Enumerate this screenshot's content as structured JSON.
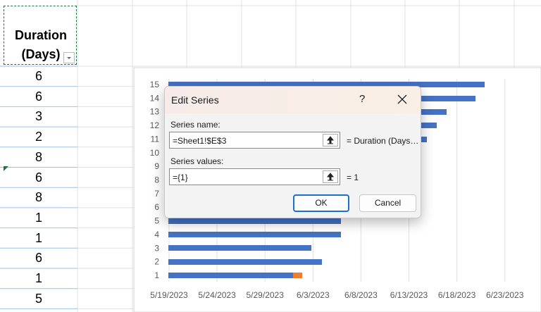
{
  "spreadsheet": {
    "header": "Duration (Days)",
    "rows": [
      6,
      6,
      3,
      2,
      8,
      6,
      8,
      1,
      1,
      6,
      1,
      5
    ]
  },
  "chart": {
    "y_labels": [
      1,
      2,
      3,
      4,
      5,
      6,
      7,
      8,
      9,
      10,
      11,
      12,
      13,
      14,
      15
    ],
    "x_labels": [
      "5/19/2023",
      "5/24/2023",
      "5/29/2023",
      "6/3/2023",
      "6/8/2023",
      "6/13/2023",
      "6/18/2023",
      "6/23/2023"
    ]
  },
  "dialog": {
    "title": "Edit Series",
    "help": "?",
    "series_name_label": "Series name:",
    "series_name_value": "=Sheet1!$E$3",
    "series_name_result": "= Duration (Days…",
    "series_values_label": "Series values:",
    "series_values_value": "={1}",
    "series_values_result": "= 1",
    "ok": "OK",
    "cancel": "Cancel"
  }
}
